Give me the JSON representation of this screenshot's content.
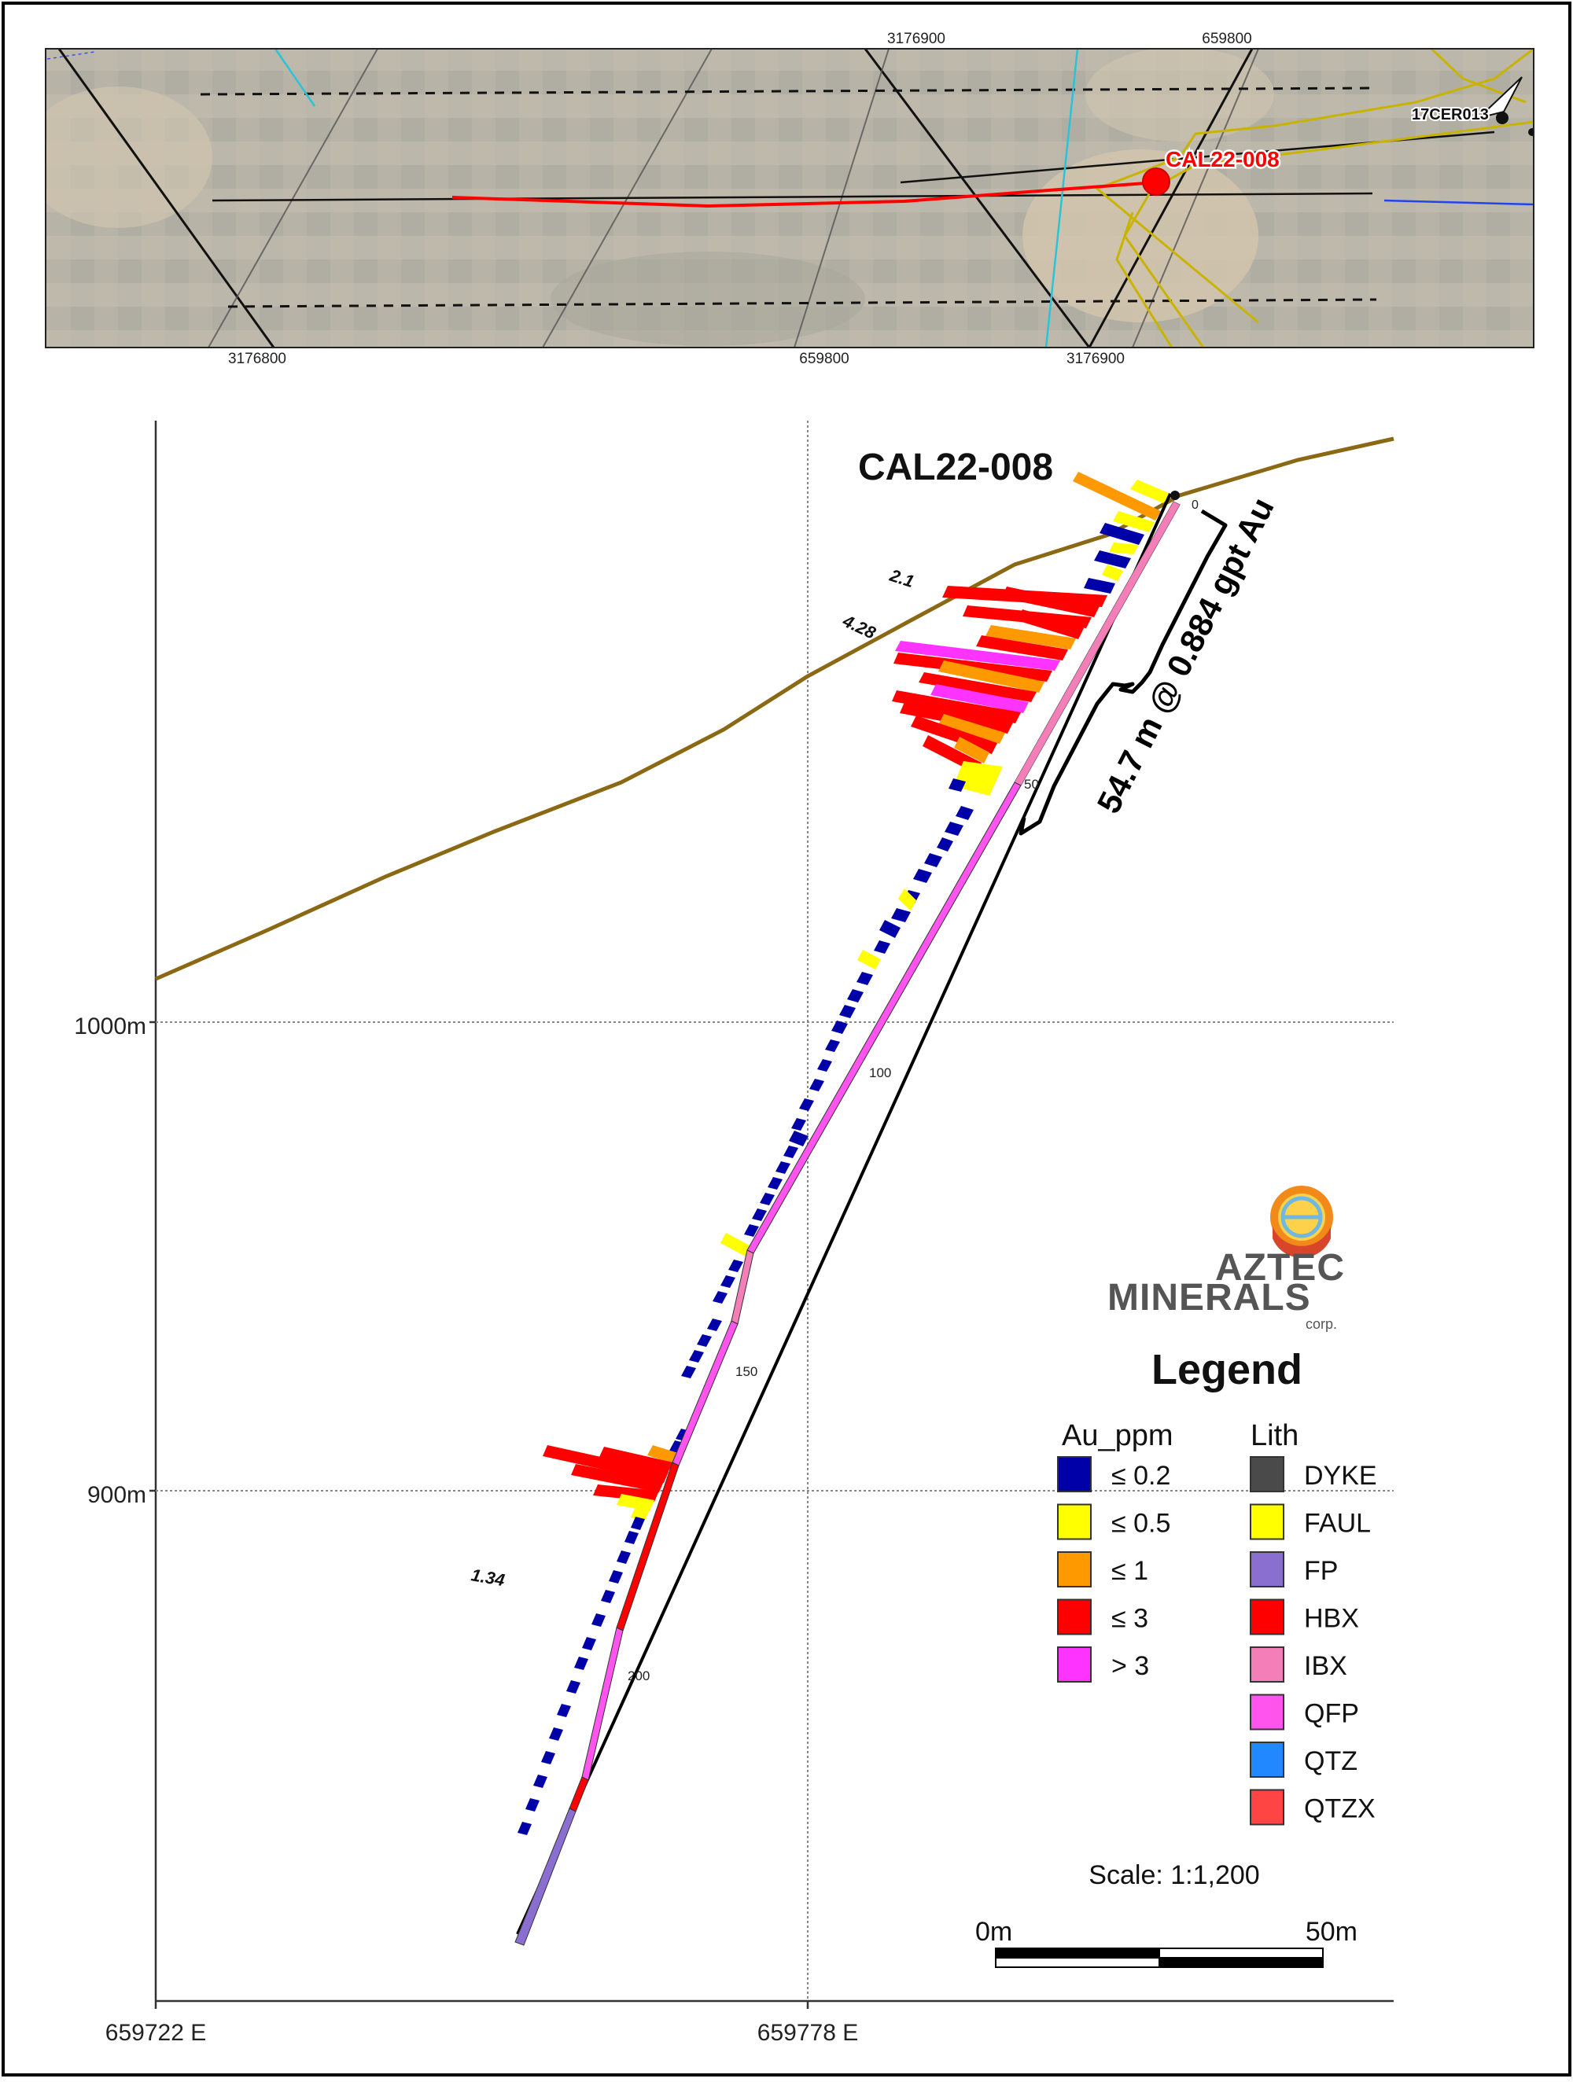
{
  "plan_map": {
    "grid_labels_top": [
      "3176900",
      "659800"
    ],
    "grid_labels_bottom": [
      "3176800",
      "659800",
      "3176900"
    ],
    "hole_label": "CAL22-008",
    "other_hole_label": "17CER013"
  },
  "section": {
    "hole_title": "CAL22-008",
    "peak_labels": [
      "2.1",
      "4.28",
      "1.34"
    ],
    "depth_ticks": [
      "0",
      "50",
      "100",
      "150",
      "200"
    ],
    "intercept_text": "54.7 m @ 0.884 gpt Au",
    "elevation_labels": [
      "1000m",
      "900m"
    ],
    "easting_labels": [
      "659722 E",
      "659778 E"
    ]
  },
  "logo": {
    "line1": "AZTEC",
    "line2": "MINERALS",
    "line3": "corp."
  },
  "legend": {
    "title": "Legend",
    "au_header": "Au_ppm",
    "lith_header": "Lith",
    "au_items": [
      {
        "label": "≤ 0.2",
        "color": "#0000a8"
      },
      {
        "label": "≤ 0.5",
        "color": "#ffff00"
      },
      {
        "label": "≤ 1",
        "color": "#ff9900"
      },
      {
        "label": "≤ 3",
        "color": "#ff0000"
      },
      {
        "label": "> 3",
        "color": "#ff33ff"
      }
    ],
    "lith_items": [
      {
        "label": "DYKE",
        "color": "#4a4a4a"
      },
      {
        "label": "FAUL",
        "color": "#ffff00"
      },
      {
        "label": "FP",
        "color": "#8a6fd1"
      },
      {
        "label": "HBX",
        "color": "#ff0000"
      },
      {
        "label": "IBX",
        "color": "#f47fb8"
      },
      {
        "label": "QFP",
        "color": "#ff55ee"
      },
      {
        "label": "QTZ",
        "color": "#2288ff"
      },
      {
        "label": "QTZX",
        "color": "#ff4444"
      }
    ]
  },
  "scale": {
    "text": "Scale: 1:1,200",
    "start": "0m",
    "end": "50m"
  },
  "colors": {
    "topography": "#8b6914",
    "plan_hole": "#ff0000",
    "contour": "#c8b400"
  }
}
